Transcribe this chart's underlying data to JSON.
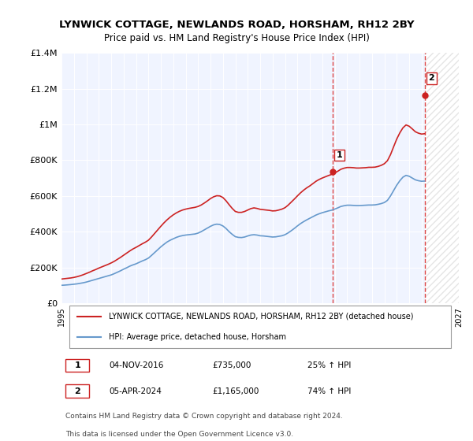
{
  "title": "LYNWICK COTTAGE, NEWLANDS ROAD, HORSHAM, RH12 2BY",
  "subtitle": "Price paid vs. HM Land Registry's House Price Index (HPI)",
  "legend_line1": "LYNWICK COTTAGE, NEWLANDS ROAD, HORSHAM, RH12 2BY (detached house)",
  "legend_line2": "HPI: Average price, detached house, Horsham",
  "annotation1_label": "1",
  "annotation1_date": "04-NOV-2016",
  "annotation1_price": "£735,000",
  "annotation1_hpi": "25% ↑ HPI",
  "annotation2_label": "2",
  "annotation2_date": "05-APR-2024",
  "annotation2_price": "£1,165,000",
  "annotation2_hpi": "74% ↑ HPI",
  "footer1": "Contains HM Land Registry data © Crown copyright and database right 2024.",
  "footer2": "This data is licensed under the Open Government Licence v3.0.",
  "xmin": 1995.0,
  "xmax": 2027.0,
  "ymin": 0,
  "ymax": 1400000,
  "hpi_color": "#6699cc",
  "price_color": "#cc2222",
  "vline_color": "#dd4444",
  "hatched_color": "#ffcccc",
  "background_color": "#f0f4ff",
  "yticks": [
    0,
    200000,
    400000,
    600000,
    800000,
    1000000,
    1200000,
    1400000
  ],
  "ytick_labels": [
    "£0",
    "£200K",
    "£400K",
    "£600K",
    "£800K",
    "£1M",
    "£1.2M",
    "£1.4M"
  ],
  "xticks": [
    1995,
    1996,
    1997,
    1998,
    1999,
    2000,
    2001,
    2002,
    2003,
    2004,
    2005,
    2006,
    2007,
    2008,
    2009,
    2010,
    2011,
    2012,
    2013,
    2014,
    2015,
    2016,
    2017,
    2018,
    2019,
    2020,
    2021,
    2022,
    2023,
    2024,
    2025,
    2026,
    2027
  ],
  "sale1_x": 2016.84,
  "sale1_y": 735000,
  "sale2_x": 2024.26,
  "sale2_y": 1165000,
  "hpi_years": [
    1995.0,
    1995.25,
    1995.5,
    1995.75,
    1996.0,
    1996.25,
    1996.5,
    1996.75,
    1997.0,
    1997.25,
    1997.5,
    1997.75,
    1998.0,
    1998.25,
    1998.5,
    1998.75,
    1999.0,
    1999.25,
    1999.5,
    1999.75,
    2000.0,
    2000.25,
    2000.5,
    2000.75,
    2001.0,
    2001.25,
    2001.5,
    2001.75,
    2002.0,
    2002.25,
    2002.5,
    2002.75,
    2003.0,
    2003.25,
    2003.5,
    2003.75,
    2004.0,
    2004.25,
    2004.5,
    2004.75,
    2005.0,
    2005.25,
    2005.5,
    2005.75,
    2006.0,
    2006.25,
    2006.5,
    2006.75,
    2007.0,
    2007.25,
    2007.5,
    2007.75,
    2008.0,
    2008.25,
    2008.5,
    2008.75,
    2009.0,
    2009.25,
    2009.5,
    2009.75,
    2010.0,
    2010.25,
    2010.5,
    2010.75,
    2011.0,
    2011.25,
    2011.5,
    2011.75,
    2012.0,
    2012.25,
    2012.5,
    2012.75,
    2013.0,
    2013.25,
    2013.5,
    2013.75,
    2014.0,
    2014.25,
    2014.5,
    2014.75,
    2015.0,
    2015.25,
    2015.5,
    2015.75,
    2016.0,
    2016.25,
    2016.5,
    2016.75,
    2017.0,
    2017.25,
    2017.5,
    2017.75,
    2018.0,
    2018.25,
    2018.5,
    2018.75,
    2019.0,
    2019.25,
    2019.5,
    2019.75,
    2020.0,
    2020.25,
    2020.5,
    2020.75,
    2021.0,
    2021.25,
    2021.5,
    2021.75,
    2022.0,
    2022.25,
    2022.5,
    2022.75,
    2023.0,
    2023.25,
    2023.5,
    2023.75,
    2024.0,
    2024.25
  ],
  "hpi_values": [
    100000,
    101000,
    102500,
    104000,
    106000,
    108000,
    111000,
    114000,
    118000,
    123000,
    128000,
    133000,
    138000,
    143000,
    148000,
    153000,
    158000,
    165000,
    173000,
    181000,
    190000,
    198000,
    207000,
    214000,
    220000,
    228000,
    236000,
    243000,
    252000,
    267000,
    283000,
    299000,
    315000,
    329000,
    342000,
    352000,
    360000,
    368000,
    374000,
    378000,
    381000,
    383000,
    385000,
    387000,
    392000,
    400000,
    410000,
    420000,
    430000,
    438000,
    442000,
    440000,
    432000,
    418000,
    400000,
    385000,
    372000,
    368000,
    367000,
    370000,
    376000,
    381000,
    383000,
    381000,
    377000,
    376000,
    374000,
    372000,
    370000,
    371000,
    374000,
    377000,
    383000,
    393000,
    405000,
    418000,
    432000,
    445000,
    456000,
    466000,
    475000,
    484000,
    493000,
    500000,
    506000,
    511000,
    516000,
    520000,
    526000,
    533000,
    541000,
    545000,
    548000,
    548000,
    547000,
    546000,
    546000,
    547000,
    548000,
    549000,
    549000,
    550000,
    553000,
    557000,
    563000,
    575000,
    600000,
    630000,
    660000,
    685000,
    705000,
    715000,
    710000,
    700000,
    690000,
    685000,
    682000,
    683000
  ],
  "price_years": [
    1995.0,
    1995.25,
    1995.5,
    1995.75,
    1996.0,
    1996.25,
    1996.5,
    1996.75,
    1997.0,
    1997.25,
    1997.5,
    1997.75,
    1998.0,
    1998.25,
    1998.5,
    1998.75,
    1999.0,
    1999.25,
    1999.5,
    1999.75,
    2000.0,
    2000.25,
    2000.5,
    2000.75,
    2001.0,
    2001.25,
    2001.5,
    2001.75,
    2002.0,
    2002.25,
    2002.5,
    2002.75,
    2003.0,
    2003.25,
    2003.5,
    2003.75,
    2004.0,
    2004.25,
    2004.5,
    2004.75,
    2005.0,
    2005.25,
    2005.5,
    2005.75,
    2006.0,
    2006.25,
    2006.5,
    2006.75,
    2007.0,
    2007.25,
    2007.5,
    2007.75,
    2008.0,
    2008.25,
    2008.5,
    2008.75,
    2009.0,
    2009.25,
    2009.5,
    2009.75,
    2010.0,
    2010.25,
    2010.5,
    2010.75,
    2011.0,
    2011.25,
    2011.5,
    2011.75,
    2012.0,
    2012.25,
    2012.5,
    2012.75,
    2013.0,
    2013.25,
    2013.5,
    2013.75,
    2014.0,
    2014.25,
    2014.5,
    2014.75,
    2015.0,
    2015.25,
    2015.5,
    2015.75,
    2016.0,
    2016.25,
    2016.5,
    2016.75,
    2017.0,
    2017.25,
    2017.5,
    2017.75,
    2018.0,
    2018.25,
    2018.5,
    2018.75,
    2019.0,
    2019.25,
    2019.5,
    2019.75,
    2020.0,
    2020.25,
    2020.5,
    2020.75,
    2021.0,
    2021.25,
    2021.5,
    2021.75,
    2022.0,
    2022.25,
    2022.5,
    2022.75,
    2023.0,
    2023.25,
    2023.5,
    2023.75,
    2024.0,
    2024.25
  ],
  "price_values": [
    135000,
    137000,
    139000,
    141000,
    144000,
    148000,
    153000,
    159000,
    166000,
    173000,
    181000,
    188000,
    196000,
    203000,
    210000,
    217000,
    225000,
    234000,
    245000,
    256000,
    268000,
    280000,
    292000,
    303000,
    312000,
    322000,
    332000,
    341000,
    352000,
    370000,
    390000,
    410000,
    430000,
    449000,
    466000,
    481000,
    494000,
    505000,
    514000,
    521000,
    526000,
    530000,
    533000,
    536000,
    541000,
    549000,
    560000,
    572000,
    585000,
    595000,
    601000,
    600000,
    591000,
    573000,
    551000,
    530000,
    513000,
    508000,
    508000,
    513000,
    521000,
    529000,
    533000,
    530000,
    525000,
    523000,
    521000,
    519000,
    516000,
    517000,
    521000,
    526000,
    534000,
    548000,
    565000,
    582000,
    600000,
    617000,
    632000,
    645000,
    656000,
    669000,
    682000,
    692000,
    700000,
    707000,
    714000,
    720000,
    728000,
    738000,
    749000,
    755000,
    759000,
    759000,
    758000,
    756000,
    756000,
    757000,
    758000,
    760000,
    760000,
    761000,
    765000,
    771000,
    780000,
    797000,
    831000,
    875000,
    918000,
    953000,
    981000,
    997000,
    990000,
    975000,
    959000,
    951000,
    946000,
    948000
  ]
}
